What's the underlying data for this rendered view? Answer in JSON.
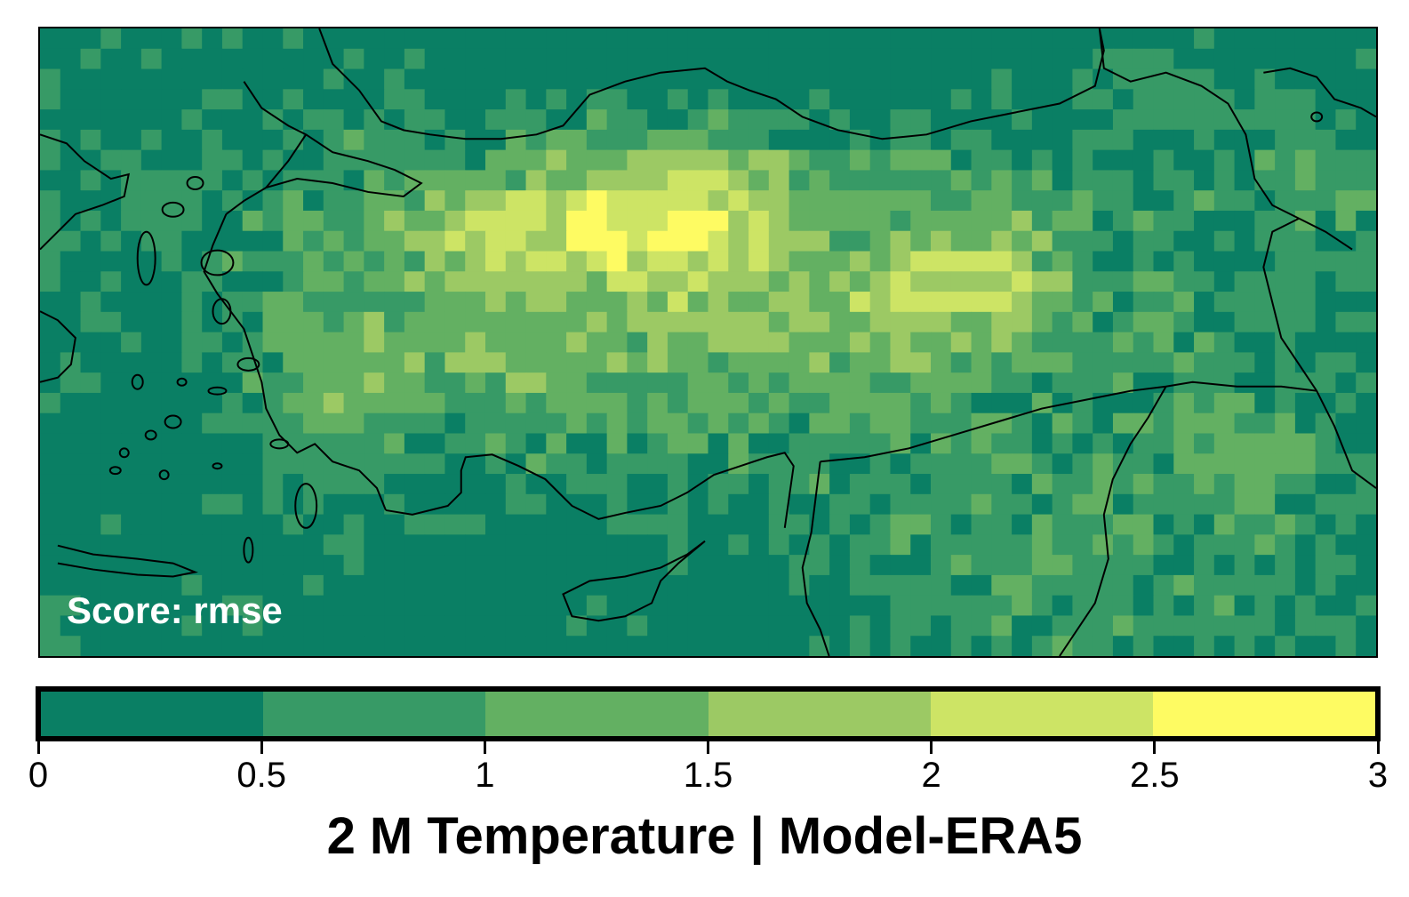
{
  "map": {
    "score_label": "Score: rmse",
    "grid_cols": 66,
    "grid_rows": 31,
    "bins": [
      {
        "min": 0.0,
        "max": 0.5,
        "color": "#0a7f64"
      },
      {
        "min": 0.5,
        "max": 1.0,
        "color": "#379a66"
      },
      {
        "min": 1.0,
        "max": 1.5,
        "color": "#63b062"
      },
      {
        "min": 1.5,
        "max": 2.0,
        "color": "#9cc964"
      },
      {
        "min": 2.0,
        "max": 2.5,
        "color": "#cde465"
      },
      {
        "min": 2.5,
        "max": 3.0,
        "color": "#fefb62"
      }
    ],
    "outline_color": "#000000"
  },
  "colorbar": {
    "ticks": [
      "0",
      "0.5",
      "1",
      "1.5",
      "2",
      "2.5",
      "3"
    ],
    "min": 0,
    "max": 3
  },
  "title": "2 M Temperature | Model-ERA5"
}
